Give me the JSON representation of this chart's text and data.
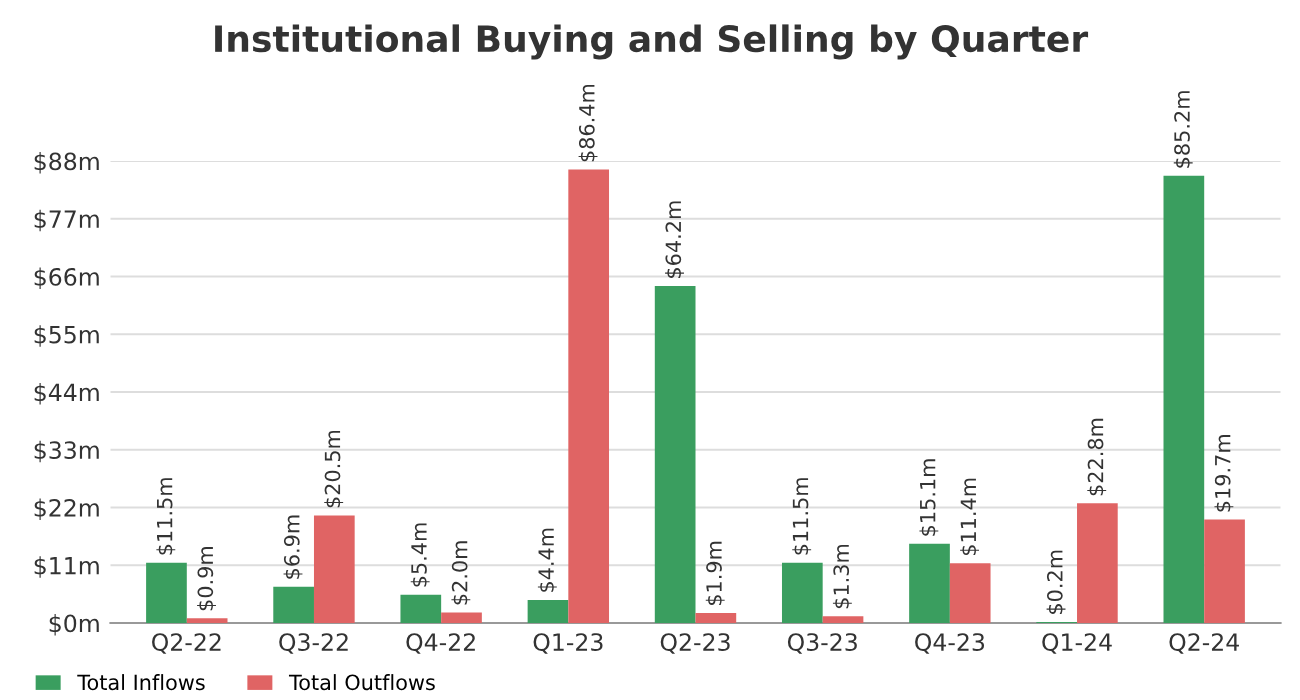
{
  "chart_data": {
    "type": "bar",
    "title": "Institutional Buying and Selling by Quarter",
    "categories": [
      "Q2-22",
      "Q3-22",
      "Q4-22",
      "Q1-23",
      "Q2-23",
      "Q3-23",
      "Q4-23",
      "Q1-24",
      "Q2-24"
    ],
    "series": [
      {
        "name": "Total Inflows",
        "color": "#3a9e5f",
        "values": [
          11.5,
          6.9,
          5.4,
          4.4,
          64.2,
          11.5,
          15.1,
          0.2,
          85.2
        ],
        "value_labels": [
          "$11.5m",
          "$6.9m",
          "$5.4m",
          "$4.4m",
          "$64.2m",
          "$11.5m",
          "$15.1m",
          "$0.2m",
          "$85.2m"
        ]
      },
      {
        "name": "Total Outflows",
        "color": "#e06464",
        "values": [
          0.9,
          20.5,
          2.0,
          86.4,
          1.9,
          1.3,
          11.4,
          22.8,
          19.7
        ],
        "value_labels": [
          "$0.9m",
          "$20.5m",
          "$2.0m",
          "$86.4m",
          "$1.9m",
          "$1.3m",
          "$11.4m",
          "$22.8m",
          "$19.7m"
        ]
      }
    ],
    "ylim": [
      0,
      88
    ],
    "yticks": [
      {
        "value": 0,
        "label": "$0m"
      },
      {
        "value": 11,
        "label": "$11m"
      },
      {
        "value": 22,
        "label": "$22m"
      },
      {
        "value": 33,
        "label": "$33m"
      },
      {
        "value": 44,
        "label": "$44m"
      },
      {
        "value": 55,
        "label": "$55m"
      },
      {
        "value": 66,
        "label": "$66m"
      },
      {
        "value": 77,
        "label": "$77m"
      },
      {
        "value": 88,
        "label": "$88m"
      }
    ],
    "grid": "y",
    "legend": "bottom left"
  }
}
